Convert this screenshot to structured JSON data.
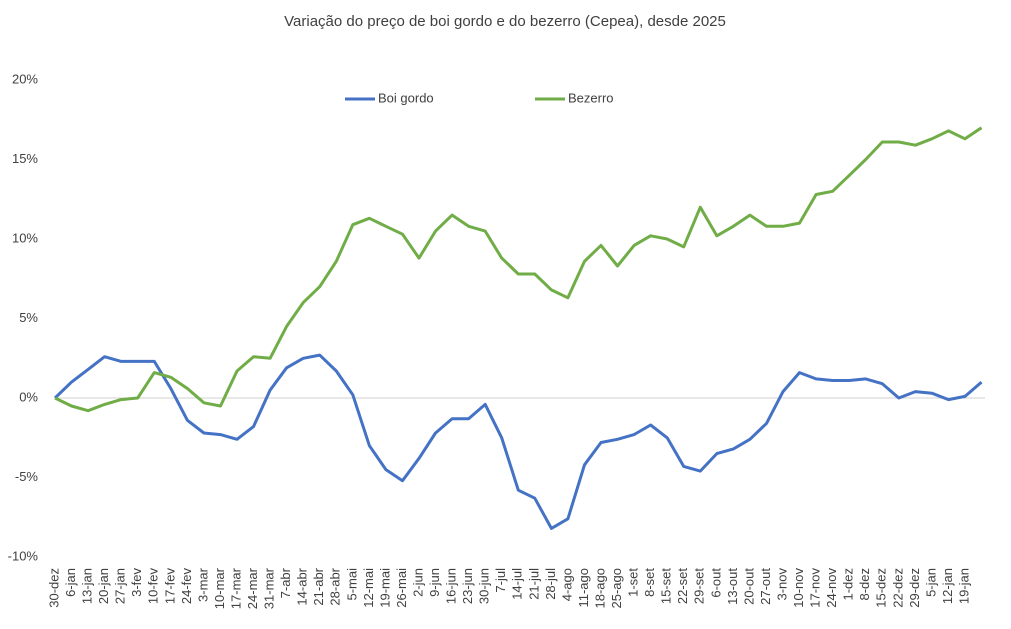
{
  "chart_data": {
    "type": "line",
    "title": "Variação do preço de boi gordo  e do bezerro (Cepea), desde 2025",
    "categories": [
      "30-dez",
      "6-jan",
      "13-jan",
      "20-jan",
      "27-jan",
      "3-fev",
      "10-fev",
      "17-fev",
      "24-fev",
      "3-mar",
      "10-mar",
      "17-mar",
      "24-mar",
      "31-mar",
      "7-abr",
      "14-abr",
      "21-abr",
      "28-abr",
      "5-mai",
      "12-mai",
      "19-mai",
      "26-mai",
      "2-jun",
      "9-jun",
      "16-jun",
      "23-jun",
      "30-jun",
      "7-jul",
      "14-jul",
      "21-jul",
      "28-jul",
      "4-ago",
      "11-ago",
      "18-ago",
      "25-ago",
      "1-set",
      "8-set",
      "15-set",
      "22-set",
      "29-set",
      "6-out",
      "13-out",
      "20-out",
      "27-out",
      "3-nov",
      "10-nov",
      "17-nov",
      "24-nov",
      "1-dez",
      "8-dez",
      "15-dez",
      "22-dez",
      "29-dez",
      "5-jan",
      "12-jan",
      "19-jan",
      null
    ],
    "series": [
      {
        "name": "Boi gordo",
        "color": "#4472c4",
        "values": [
          0,
          1.0,
          1.8,
          2.6,
          2.3,
          2.3,
          2.3,
          0.6,
          -1.4,
          -2.2,
          -2.3,
          -2.6,
          -1.8,
          0.5,
          1.9,
          2.5,
          2.7,
          1.7,
          0.2,
          -3.0,
          -4.5,
          -5.2,
          -3.8,
          -2.2,
          -1.3,
          -1.3,
          -0.4,
          -2.5,
          -5.8,
          -6.3,
          -8.2,
          -7.6,
          -4.2,
          -2.8,
          -2.6,
          -2.3,
          -1.7,
          -2.5,
          -4.3,
          -4.6,
          -3.5,
          -3.2,
          -2.6,
          -1.6,
          0.4,
          1.6,
          1.2,
          1.1,
          1.1,
          1.2,
          0.9,
          0.0,
          0.4,
          0.3,
          -0.1,
          0.1,
          1.0
        ]
      },
      {
        "name": "Bezerro",
        "color": "#70ad47",
        "values": [
          0,
          -0.5,
          -0.8,
          -0.4,
          -0.1,
          0.0,
          1.6,
          1.3,
          0.6,
          -0.3,
          -0.5,
          1.7,
          2.6,
          2.5,
          4.5,
          6.0,
          7.0,
          8.6,
          10.9,
          11.3,
          10.8,
          10.3,
          8.8,
          10.5,
          11.5,
          10.8,
          10.5,
          8.8,
          7.8,
          7.8,
          6.8,
          6.3,
          8.6,
          9.6,
          8.3,
          9.6,
          10.2,
          10.0,
          9.5,
          12.0,
          10.2,
          10.8,
          11.5,
          10.8,
          10.8,
          11.0,
          12.8,
          13.0,
          14.0,
          15.0,
          16.1,
          16.1,
          15.9,
          16.3,
          16.8,
          16.3,
          17.0
        ]
      }
    ],
    "ylim": [
      -10,
      20
    ],
    "yticks": [
      {
        "value": -10,
        "label": "-10%"
      },
      {
        "value": -5,
        "label": "-5%"
      },
      {
        "value": 0,
        "label": "0%"
      },
      {
        "value": 5,
        "label": "5%"
      },
      {
        "value": 10,
        "label": "10%"
      },
      {
        "value": 15,
        "label": "15%"
      },
      {
        "value": 20,
        "label": "20%"
      }
    ],
    "legend": "top"
  }
}
